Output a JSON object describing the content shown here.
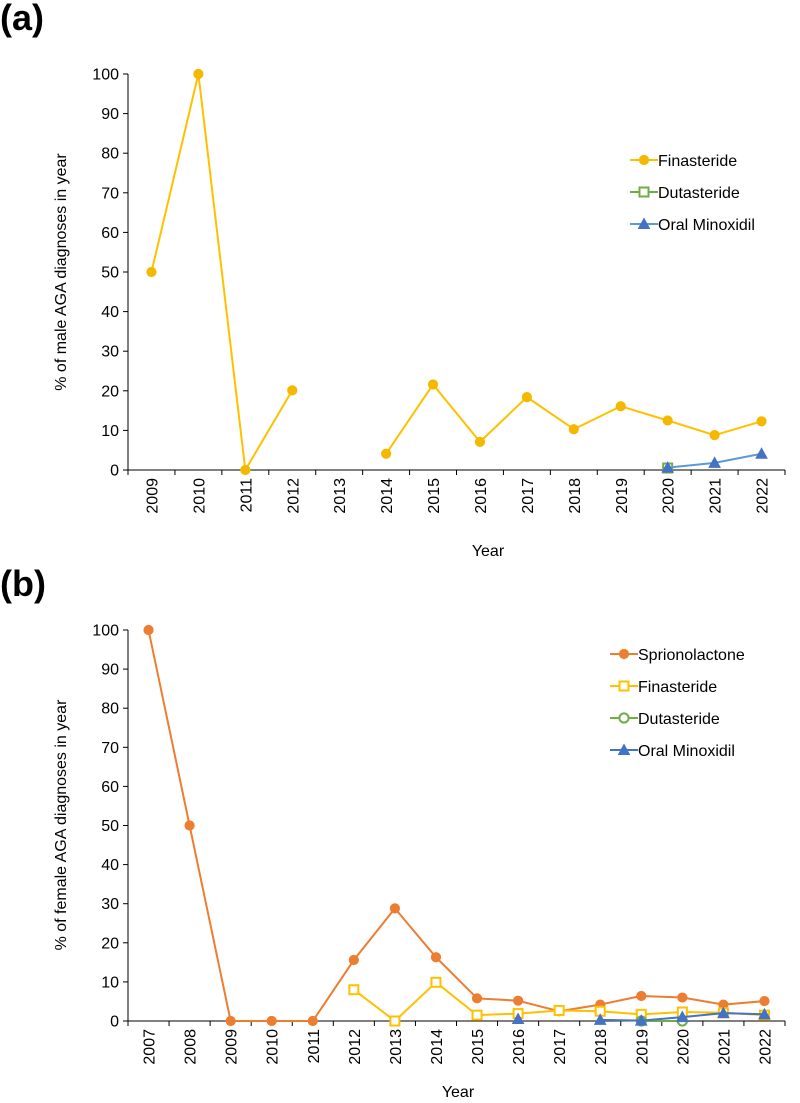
{
  "chart_data": [
    {
      "panel_label": "(a)",
      "type": "line",
      "xlabel": "Year",
      "ylabel": "% of male AGA diagnoses in year",
      "ylim": [
        0,
        100
      ],
      "yticks": [
        0,
        10,
        20,
        30,
        40,
        50,
        60,
        70,
        80,
        90,
        100
      ],
      "categories": [
        "2009",
        "2010",
        "2011",
        "2012",
        "2013",
        "2014",
        "2015",
        "2016",
        "2017",
        "2018",
        "2019",
        "2020",
        "2021",
        "2022"
      ],
      "legend_position": "right",
      "series": [
        {
          "name": "Finasteride",
          "color": "#FFC000",
          "marker_color": "#F5B800",
          "marker": "circle",
          "filled": true,
          "values": [
            50,
            100,
            0,
            20.1,
            null,
            4.1,
            21.6,
            7.1,
            18.4,
            10.3,
            16.1,
            12.5,
            8.8,
            12.3
          ]
        },
        {
          "name": "Dutasteride",
          "color": "#70AD47",
          "marker": "square",
          "filled": false,
          "values": [
            null,
            null,
            null,
            null,
            null,
            null,
            null,
            null,
            null,
            null,
            null,
            0.5,
            null,
            null
          ]
        },
        {
          "name": "Oral Minoxidil",
          "color": "#5B9BD5",
          "marker_color": "#4472C4",
          "marker": "triangle",
          "filled": true,
          "values": [
            null,
            null,
            null,
            null,
            null,
            null,
            null,
            null,
            null,
            null,
            null,
            0.6,
            1.8,
            4.1
          ]
        }
      ]
    },
    {
      "panel_label": "(b)",
      "type": "line",
      "xlabel": "Year",
      "ylabel": "% of female AGA diagnoses in year",
      "ylim": [
        0,
        100
      ],
      "yticks": [
        0,
        10,
        20,
        30,
        40,
        50,
        60,
        70,
        80,
        90,
        100
      ],
      "categories": [
        "2007",
        "2008",
        "2009",
        "2010",
        "2011",
        "2012",
        "2013",
        "2014",
        "2015",
        "2016",
        "2017",
        "2018",
        "2019",
        "2020",
        "2021",
        "2022"
      ],
      "legend_position": "right",
      "series": [
        {
          "name": "Sprionolactone",
          "color": "#ED7D31",
          "marker": "circle",
          "filled": true,
          "values": [
            100,
            50,
            0,
            0,
            0,
            15.6,
            28.8,
            16.3,
            5.8,
            5.2,
            2.5,
            4.2,
            6.4,
            6.0,
            4.2,
            5.1
          ]
        },
        {
          "name": "Finasteride",
          "color": "#FFC000",
          "marker": "square",
          "filled": false,
          "values": [
            null,
            null,
            null,
            null,
            null,
            8.0,
            0,
            9.9,
            1.5,
            1.9,
            2.7,
            2.5,
            1.7,
            2.3,
            2.1,
            1.5
          ]
        },
        {
          "name": "Dutasteride",
          "color": "#70AD47",
          "marker": "circle",
          "filled": false,
          "values": [
            null,
            null,
            null,
            null,
            null,
            null,
            null,
            null,
            null,
            null,
            null,
            null,
            0,
            0,
            null,
            null
          ]
        },
        {
          "name": "Oral Minoxidil",
          "color": "#4472C4",
          "marker": "triangle",
          "filled": true,
          "values": [
            null,
            null,
            null,
            null,
            null,
            null,
            null,
            null,
            null,
            0.5,
            null,
            0.3,
            0.1,
            1.0,
            2.0,
            1.7
          ]
        }
      ]
    }
  ]
}
